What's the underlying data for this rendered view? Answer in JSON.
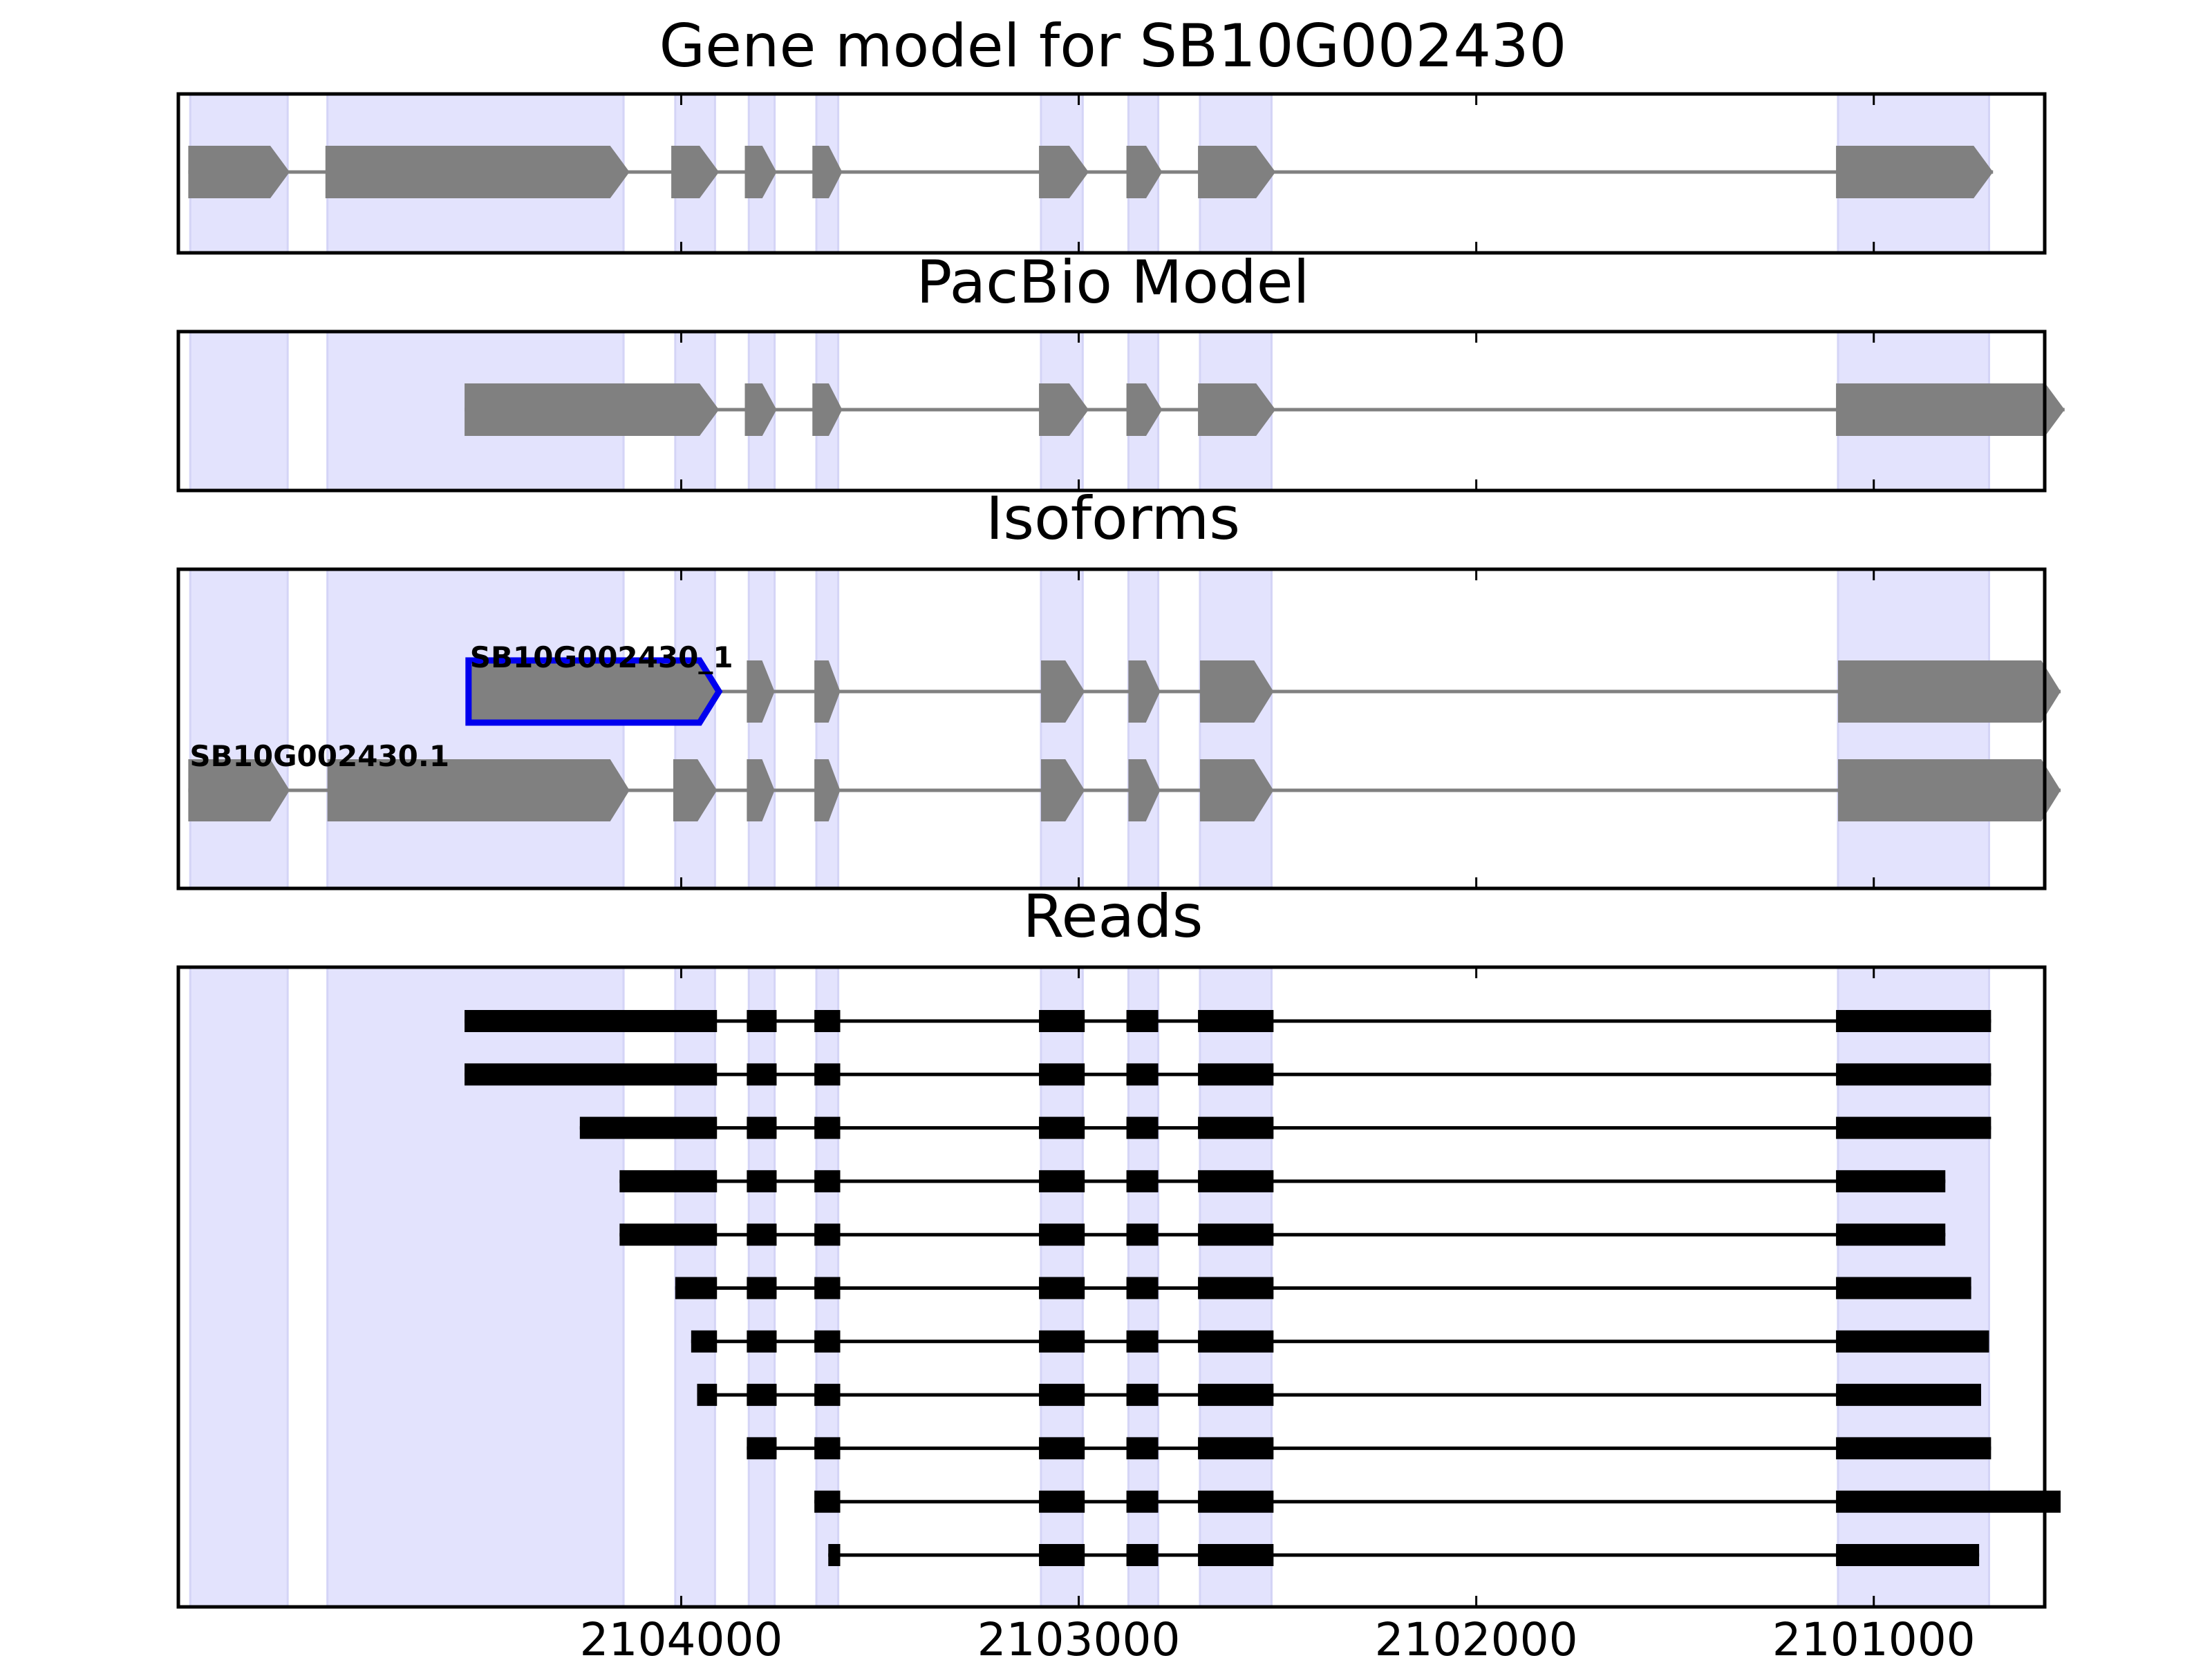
{
  "colors": {
    "background": "#ffffff",
    "exon_shade": "#e3e3fd",
    "gene_fill": "#808080",
    "intron_line": "#808080",
    "highlight_outline": "#0000ee",
    "read": "#000000",
    "axis": "#000000"
  },
  "chart_data": {
    "type": "gene-track",
    "x_axis": {
      "min": 2100570,
      "max": 2105265,
      "reversed": true,
      "ticks": [
        2104000,
        2103000,
        2102000,
        2101000
      ],
      "tick_labels": [
        "2104000",
        "2103000",
        "2102000",
        "2101000"
      ]
    },
    "shaded_regions": [
      [
        2105235,
        2104990
      ],
      [
        2104890,
        2104145
      ],
      [
        2104015,
        2103915
      ],
      [
        2103830,
        2103765
      ],
      [
        2103660,
        2103605
      ],
      [
        2103095,
        2102990
      ],
      [
        2102875,
        2102800
      ],
      [
        2102695,
        2102515
      ],
      [
        2101090,
        2100710
      ]
    ],
    "panels": [
      {
        "title": "Gene model for SB10G002430",
        "models": [
          {
            "label": "",
            "highlight": false,
            "exons": [
              [
                2105240,
                2104985
              ],
              [
                2104895,
                2104130
              ],
              [
                2104025,
                2103905
              ],
              [
                2103840,
                2103760
              ],
              [
                2103670,
                2103595
              ],
              [
                2103100,
                2102975
              ],
              [
                2102880,
                2102790
              ],
              [
                2102700,
                2102505
              ],
              [
                2101095,
                2100700
              ]
            ]
          }
        ]
      },
      {
        "title": "PacBio Model",
        "models": [
          {
            "label": "",
            "highlight": false,
            "exons": [
              [
                2104545,
                2103905
              ],
              [
                2103840,
                2103760
              ],
              [
                2103670,
                2103595
              ],
              [
                2103100,
                2102975
              ],
              [
                2102880,
                2102790
              ],
              [
                2102700,
                2102505
              ],
              [
                2101095,
                2100520
              ]
            ]
          }
        ]
      },
      {
        "title": "Isoforms",
        "models": [
          {
            "label": "SB10G002430_1",
            "highlight": true,
            "exons": [
              [
                2104535,
                2103905
              ],
              [
                2103835,
                2103765
              ],
              [
                2103665,
                2103600
              ],
              [
                2103095,
                2102985
              ],
              [
                2102875,
                2102795
              ],
              [
                2102695,
                2102510
              ],
              [
                2101090,
                2100530
              ]
            ]
          },
          {
            "label": "SB10G002430.1",
            "highlight": false,
            "exons": [
              [
                2105240,
                2104985
              ],
              [
                2104890,
                2104130
              ],
              [
                2104020,
                2103910
              ],
              [
                2103835,
                2103765
              ],
              [
                2103665,
                2103600
              ],
              [
                2103095,
                2102985
              ],
              [
                2102875,
                2102795
              ],
              [
                2102695,
                2102510
              ],
              [
                2101090,
                2100530
              ]
            ]
          }
        ]
      },
      {
        "title": "Reads",
        "reads": [
          [
            [
              2104545,
              2103910
            ],
            [
              2103835,
              2103760
            ],
            [
              2103665,
              2103600
            ],
            [
              2103100,
              2102985
            ],
            [
              2102880,
              2102800
            ],
            [
              2102700,
              2102510
            ],
            [
              2101095,
              2100705
            ]
          ],
          [
            [
              2104545,
              2103910
            ],
            [
              2103835,
              2103760
            ],
            [
              2103665,
              2103600
            ],
            [
              2103100,
              2102985
            ],
            [
              2102880,
              2102800
            ],
            [
              2102700,
              2102510
            ],
            [
              2101095,
              2100705
            ]
          ],
          [
            [
              2104255,
              2103910
            ],
            [
              2103835,
              2103760
            ],
            [
              2103665,
              2103600
            ],
            [
              2103100,
              2102985
            ],
            [
              2102880,
              2102800
            ],
            [
              2102700,
              2102510
            ],
            [
              2101095,
              2100705
            ]
          ],
          [
            [
              2104155,
              2103910
            ],
            [
              2103835,
              2103760
            ],
            [
              2103665,
              2103600
            ],
            [
              2103100,
              2102985
            ],
            [
              2102880,
              2102800
            ],
            [
              2102700,
              2102510
            ],
            [
              2101095,
              2100820
            ]
          ],
          [
            [
              2104155,
              2103910
            ],
            [
              2103835,
              2103760
            ],
            [
              2103665,
              2103600
            ],
            [
              2103100,
              2102985
            ],
            [
              2102880,
              2102800
            ],
            [
              2102700,
              2102510
            ],
            [
              2101095,
              2100820
            ]
          ],
          [
            [
              2104015,
              2103910
            ],
            [
              2103835,
              2103760
            ],
            [
              2103665,
              2103600
            ],
            [
              2103100,
              2102985
            ],
            [
              2102880,
              2102800
            ],
            [
              2102700,
              2102510
            ],
            [
              2101095,
              2100755
            ]
          ],
          [
            [
              2103975,
              2103910
            ],
            [
              2103835,
              2103760
            ],
            [
              2103665,
              2103600
            ],
            [
              2103100,
              2102985
            ],
            [
              2102880,
              2102800
            ],
            [
              2102700,
              2102510
            ],
            [
              2101095,
              2100710
            ]
          ],
          [
            [
              2103960,
              2103910
            ],
            [
              2103835,
              2103760
            ],
            [
              2103665,
              2103600
            ],
            [
              2103100,
              2102985
            ],
            [
              2102880,
              2102800
            ],
            [
              2102700,
              2102510
            ],
            [
              2101095,
              2100730
            ]
          ],
          [
            [
              2103835,
              2103760
            ],
            [
              2103665,
              2103600
            ],
            [
              2103100,
              2102985
            ],
            [
              2102880,
              2102800
            ],
            [
              2102700,
              2102510
            ],
            [
              2101095,
              2100705
            ]
          ],
          [
            [
              2103665,
              2103600
            ],
            [
              2103100,
              2102985
            ],
            [
              2102880,
              2102800
            ],
            [
              2102700,
              2102510
            ],
            [
              2101095,
              2100530
            ]
          ],
          [
            [
              2103630,
              2103600
            ],
            [
              2103100,
              2102985
            ],
            [
              2102880,
              2102800
            ],
            [
              2102700,
              2102510
            ],
            [
              2101095,
              2100735
            ]
          ]
        ]
      }
    ]
  }
}
